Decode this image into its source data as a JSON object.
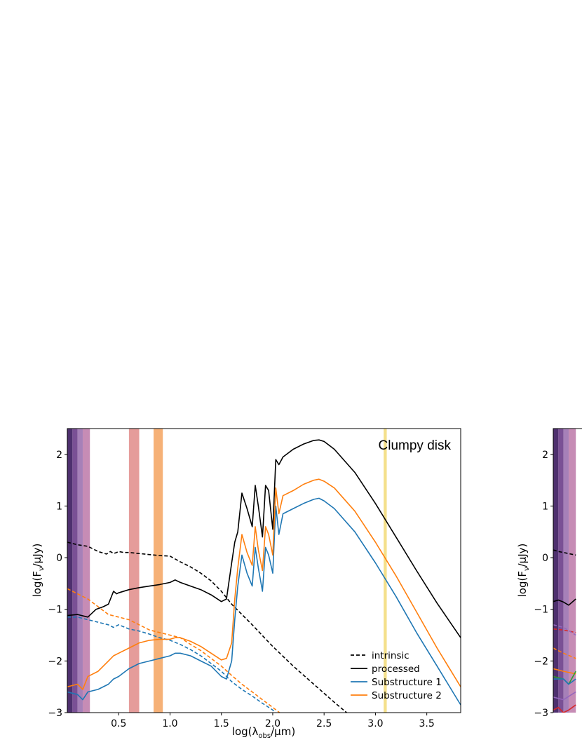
{
  "chart_data": [
    {
      "type": "line",
      "title": "Clumpy disk",
      "xlabel": "log(λ",
      "xlabel_sub": "obs",
      "xlabel_tail": "/μm)",
      "ylabel": "log(F",
      "ylabel_sub": "ν",
      "ylabel_tail": "/μJy)",
      "xlim": [
        0.0,
        3.83
      ],
      "ylim": [
        -3.0,
        2.5
      ],
      "xticks": [
        0.5,
        1.0,
        1.5,
        2.0,
        2.5,
        3.0,
        3.5
      ],
      "xtick_labels": [
        "0.5",
        "1.0",
        "1.5",
        "2.0",
        "2.5",
        "3.0",
        "3.5"
      ],
      "yticks": [
        -3,
        -2,
        -1,
        0,
        1,
        2
      ],
      "ytick_labels": [
        "−3",
        "−2",
        "−1",
        "0",
        "1",
        "2"
      ],
      "bands": [
        {
          "x0": 0.0,
          "x1": 0.05,
          "color": "#3b1a5e"
        },
        {
          "x0": 0.05,
          "x1": 0.1,
          "color": "#6b3d8a"
        },
        {
          "x0": 0.1,
          "x1": 0.15,
          "color": "#9c72b0"
        },
        {
          "x0": 0.15,
          "x1": 0.22,
          "color": "#c07fad"
        },
        {
          "x0": 0.6,
          "x1": 0.7,
          "color": "#e2918f"
        },
        {
          "x0": 0.84,
          "x1": 0.93,
          "color": "#f5a868"
        },
        {
          "x0": 3.08,
          "x1": 3.11,
          "color": "#f3dd7e"
        }
      ],
      "legend": {
        "position": "lower-right",
        "entries": [
          {
            "label": "intrinsic",
            "style": "dashed",
            "color": "#000000"
          },
          {
            "label": "processed",
            "style": "solid",
            "color": "#000000"
          },
          {
            "label": "Substructure 1",
            "style": "solid",
            "color": "#1f77b4"
          },
          {
            "label": "Substructure 2",
            "style": "solid",
            "color": "#ff7f0e"
          }
        ]
      },
      "series": [
        {
          "color": "#000000",
          "style": "dashed",
          "x": [
            0.0,
            0.1,
            0.2,
            0.3,
            0.38,
            0.42,
            0.45,
            0.48,
            0.5,
            0.55,
            0.6,
            0.7,
            0.8,
            0.9,
            1.0,
            1.1,
            1.2,
            1.3,
            1.4,
            1.5,
            1.6,
            1.7,
            1.8,
            2.0,
            2.2,
            2.4,
            2.6,
            2.75
          ],
          "y": [
            0.3,
            0.25,
            0.22,
            0.12,
            0.07,
            0.12,
            0.08,
            0.1,
            0.12,
            0.1,
            0.1,
            0.08,
            0.06,
            0.04,
            0.03,
            -0.08,
            -0.18,
            -0.3,
            -0.45,
            -0.65,
            -0.9,
            -1.1,
            -1.3,
            -1.72,
            -2.1,
            -2.45,
            -2.8,
            -3.05
          ]
        },
        {
          "color": "#000000",
          "style": "solid",
          "x": [
            0.0,
            0.1,
            0.2,
            0.28,
            0.35,
            0.4,
            0.45,
            0.48,
            0.5,
            0.6,
            0.7,
            0.8,
            0.9,
            1.0,
            1.05,
            1.1,
            1.2,
            1.3,
            1.4,
            1.5,
            1.55,
            1.6,
            1.63,
            1.66,
            1.7,
            1.75,
            1.8,
            1.83,
            1.86,
            1.9,
            1.93,
            1.96,
            2.0,
            2.03,
            2.06,
            2.1,
            2.2,
            2.3,
            2.4,
            2.45,
            2.5,
            2.6,
            2.8,
            3.0,
            3.2,
            3.4,
            3.6,
            3.83
          ],
          "y": [
            -1.12,
            -1.1,
            -1.15,
            -1.0,
            -0.95,
            -0.9,
            -0.65,
            -0.7,
            -0.68,
            -0.62,
            -0.58,
            -0.55,
            -0.52,
            -0.48,
            -0.43,
            -0.48,
            -0.55,
            -0.62,
            -0.72,
            -0.85,
            -0.8,
            -0.1,
            0.3,
            0.5,
            1.25,
            0.95,
            0.6,
            1.4,
            1.0,
            0.4,
            1.4,
            1.3,
            0.55,
            1.9,
            1.8,
            1.95,
            2.1,
            2.2,
            2.27,
            2.28,
            2.25,
            2.1,
            1.65,
            1.05,
            0.4,
            -0.25,
            -0.88,
            -1.55
          ]
        },
        {
          "color": "#1f77b4",
          "style": "dashed",
          "x": [
            0.0,
            0.1,
            0.2,
            0.3,
            0.4,
            0.45,
            0.5,
            0.6,
            0.7,
            0.8,
            0.9,
            1.0,
            1.1,
            1.2,
            1.3,
            1.4,
            1.5,
            1.6,
            1.7,
            1.8,
            1.9,
            2.0,
            2.05
          ],
          "y": [
            -1.15,
            -1.15,
            -1.2,
            -1.25,
            -1.3,
            -1.35,
            -1.3,
            -1.38,
            -1.42,
            -1.48,
            -1.55,
            -1.6,
            -1.68,
            -1.78,
            -1.9,
            -2.05,
            -2.2,
            -2.4,
            -2.55,
            -2.68,
            -2.82,
            -2.95,
            -3.05
          ]
        },
        {
          "color": "#ff7f0e",
          "style": "dashed",
          "x": [
            0.0,
            0.1,
            0.2,
            0.3,
            0.4,
            0.5,
            0.6,
            0.7,
            0.8,
            0.9,
            1.0,
            1.1,
            1.2,
            1.3,
            1.4,
            1.5,
            1.6,
            1.7,
            1.8,
            1.9,
            2.0,
            2.1
          ],
          "y": [
            -0.6,
            -0.7,
            -0.8,
            -0.95,
            -1.1,
            -1.15,
            -1.2,
            -1.3,
            -1.4,
            -1.45,
            -1.5,
            -1.55,
            -1.68,
            -1.8,
            -1.95,
            -2.1,
            -2.28,
            -2.45,
            -2.6,
            -2.75,
            -2.9,
            -3.05
          ]
        },
        {
          "color": "#1f77b4",
          "style": "solid",
          "x": [
            0.0,
            0.1,
            0.15,
            0.2,
            0.3,
            0.4,
            0.45,
            0.5,
            0.6,
            0.7,
            0.8,
            0.9,
            1.0,
            1.05,
            1.1,
            1.2,
            1.3,
            1.4,
            1.5,
            1.55,
            1.6,
            1.63,
            1.66,
            1.7,
            1.75,
            1.8,
            1.83,
            1.86,
            1.9,
            1.93,
            1.96,
            2.0,
            2.03,
            2.06,
            2.1,
            2.2,
            2.3,
            2.4,
            2.45,
            2.5,
            2.6,
            2.8,
            3.0,
            3.2,
            3.4,
            3.6,
            3.83
          ],
          "y": [
            -2.6,
            -2.65,
            -2.75,
            -2.6,
            -2.55,
            -2.45,
            -2.35,
            -2.3,
            -2.15,
            -2.05,
            -2.0,
            -1.95,
            -1.9,
            -1.85,
            -1.85,
            -1.9,
            -2.0,
            -2.1,
            -2.3,
            -2.35,
            -2.0,
            -1.2,
            -0.55,
            0.05,
            -0.3,
            -0.55,
            0.2,
            -0.2,
            -0.65,
            0.2,
            0.05,
            -0.3,
            1.0,
            0.45,
            0.85,
            0.95,
            1.05,
            1.13,
            1.15,
            1.1,
            0.95,
            0.5,
            -0.1,
            -0.75,
            -1.45,
            -2.1,
            -2.85
          ]
        },
        {
          "color": "#ff7f0e",
          "style": "solid",
          "x": [
            0.0,
            0.1,
            0.15,
            0.2,
            0.3,
            0.4,
            0.45,
            0.5,
            0.6,
            0.7,
            0.8,
            0.9,
            1.0,
            1.05,
            1.1,
            1.2,
            1.3,
            1.4,
            1.5,
            1.55,
            1.6,
            1.63,
            1.66,
            1.7,
            1.75,
            1.8,
            1.83,
            1.86,
            1.9,
            1.93,
            1.96,
            2.0,
            2.03,
            2.06,
            2.1,
            2.2,
            2.3,
            2.4,
            2.45,
            2.5,
            2.6,
            2.8,
            3.0,
            3.2,
            3.4,
            3.6,
            3.83
          ],
          "y": [
            -2.5,
            -2.45,
            -2.55,
            -2.3,
            -2.2,
            -2.0,
            -1.9,
            -1.85,
            -1.75,
            -1.65,
            -1.6,
            -1.58,
            -1.58,
            -1.55,
            -1.55,
            -1.62,
            -1.72,
            -1.85,
            -1.98,
            -1.95,
            -1.65,
            -0.8,
            -0.2,
            0.45,
            0.1,
            -0.15,
            0.6,
            0.15,
            -0.25,
            0.6,
            0.45,
            0.05,
            1.35,
            0.85,
            1.2,
            1.3,
            1.42,
            1.5,
            1.52,
            1.48,
            1.35,
            0.9,
            0.3,
            -0.35,
            -1.05,
            -1.75,
            -2.5
          ]
        }
      ]
    },
    {
      "type": "line",
      "xlabel": "",
      "ylabel": "log(F",
      "ylabel_sub": "ν",
      "ylabel_tail": "/μJy)",
      "xlim": [
        0.0,
        3.83
      ],
      "ylim": [
        -3.0,
        2.5
      ],
      "yticks": [
        -3,
        -2,
        -1,
        0,
        1,
        2
      ],
      "ytick_labels": [
        "−3",
        "−2",
        "−1",
        "0",
        "1",
        "2"
      ],
      "bands": [
        {
          "x0": 0.0,
          "x1": 0.05,
          "color": "#3b1a5e"
        },
        {
          "x0": 0.05,
          "x1": 0.1,
          "color": "#6b3d8a"
        },
        {
          "x0": 0.1,
          "x1": 0.15,
          "color": "#9c72b0"
        },
        {
          "x0": 0.15,
          "x1": 0.22,
          "color": "#c07fad"
        }
      ],
      "series": [
        {
          "color": "#000000",
          "style": "dashed",
          "x": [
            0.0,
            0.05,
            0.1,
            0.22
          ],
          "y": [
            0.15,
            0.12,
            0.1,
            0.05
          ]
        },
        {
          "color": "#000000",
          "style": "solid",
          "x": [
            0.0,
            0.05,
            0.1,
            0.15,
            0.22
          ],
          "y": [
            -0.85,
            -0.82,
            -0.86,
            -0.92,
            -0.8
          ]
        },
        {
          "color": "#d62728",
          "style": "dashed",
          "x": [
            0.0,
            0.1,
            0.22
          ],
          "y": [
            -1.38,
            -1.4,
            -1.45
          ]
        },
        {
          "color": "#9467bd",
          "style": "dashed",
          "x": [
            0.0,
            0.1,
            0.22
          ],
          "y": [
            -1.3,
            -1.35,
            -1.5
          ]
        },
        {
          "color": "#ff7f0e",
          "style": "dashed",
          "x": [
            0.0,
            0.1,
            0.22
          ],
          "y": [
            -1.75,
            -1.85,
            -1.95
          ]
        },
        {
          "color": "#ff7f0e",
          "style": "solid",
          "x": [
            0.0,
            0.1,
            0.22
          ],
          "y": [
            -2.15,
            -2.2,
            -2.25
          ]
        },
        {
          "color": "#2ca02c",
          "style": "solid",
          "x": [
            0.0,
            0.1,
            0.15,
            0.22
          ],
          "y": [
            -2.3,
            -2.35,
            -2.45,
            -2.2
          ]
        },
        {
          "color": "#1f77b4",
          "style": "solid",
          "x": [
            0.0,
            0.1,
            0.15,
            0.22
          ],
          "y": [
            -2.35,
            -2.35,
            -2.45,
            -2.35
          ]
        },
        {
          "color": "#9467bd",
          "style": "solid",
          "x": [
            0.0,
            0.1,
            0.22
          ],
          "y": [
            -2.7,
            -2.75,
            -2.6
          ]
        },
        {
          "color": "#d62728",
          "style": "solid",
          "x": [
            0.0,
            0.05,
            0.1,
            0.15,
            0.22
          ],
          "y": [
            -2.95,
            -2.9,
            -3.0,
            -2.95,
            -2.85
          ]
        }
      ]
    }
  ]
}
